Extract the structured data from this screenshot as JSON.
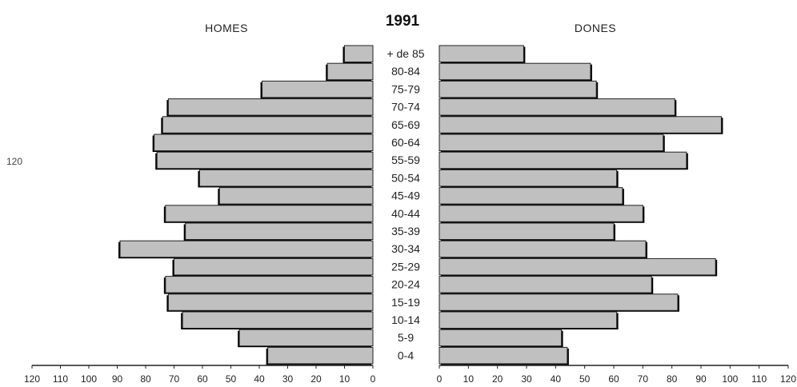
{
  "chart_data": {
    "type": "bar",
    "title": "1991",
    "left_label": "HOMES",
    "right_label": "DONES",
    "stray_label": "120",
    "categories": [
      "+ de 85",
      "80-84",
      "75-79",
      "70-74",
      "65-69",
      "60-64",
      "55-59",
      "50-54",
      "45-49",
      "40-44",
      "35-39",
      "30-34",
      "25-29",
      "20-24",
      "15-19",
      "10-14",
      "5-9",
      "0-4"
    ],
    "series": [
      {
        "name": "HOMES",
        "values": [
          10,
          16,
          39,
          72,
          74,
          77,
          76,
          61,
          54,
          73,
          66,
          89,
          70,
          73,
          72,
          67,
          47,
          37
        ]
      },
      {
        "name": "DONES",
        "values": [
          29,
          52,
          54,
          81,
          97,
          77,
          85,
          61,
          63,
          70,
          60,
          71,
          95,
          73,
          82,
          61,
          42,
          44
        ]
      }
    ],
    "xlim": [
      0,
      120
    ],
    "ticks_left": [
      "120",
      "110",
      "100",
      "90",
      "80",
      "70",
      "60",
      "50",
      "40",
      "30",
      "20",
      "10",
      "0"
    ],
    "ticks_right": [
      "0",
      "10",
      "20",
      "30",
      "40",
      "50",
      "60",
      "70",
      "80",
      "90",
      "100",
      "110",
      "120"
    ],
    "colors": {
      "bar_fill": "#c0c0c0",
      "bar_stroke": "#222222",
      "shadow": "#000000"
    }
  }
}
